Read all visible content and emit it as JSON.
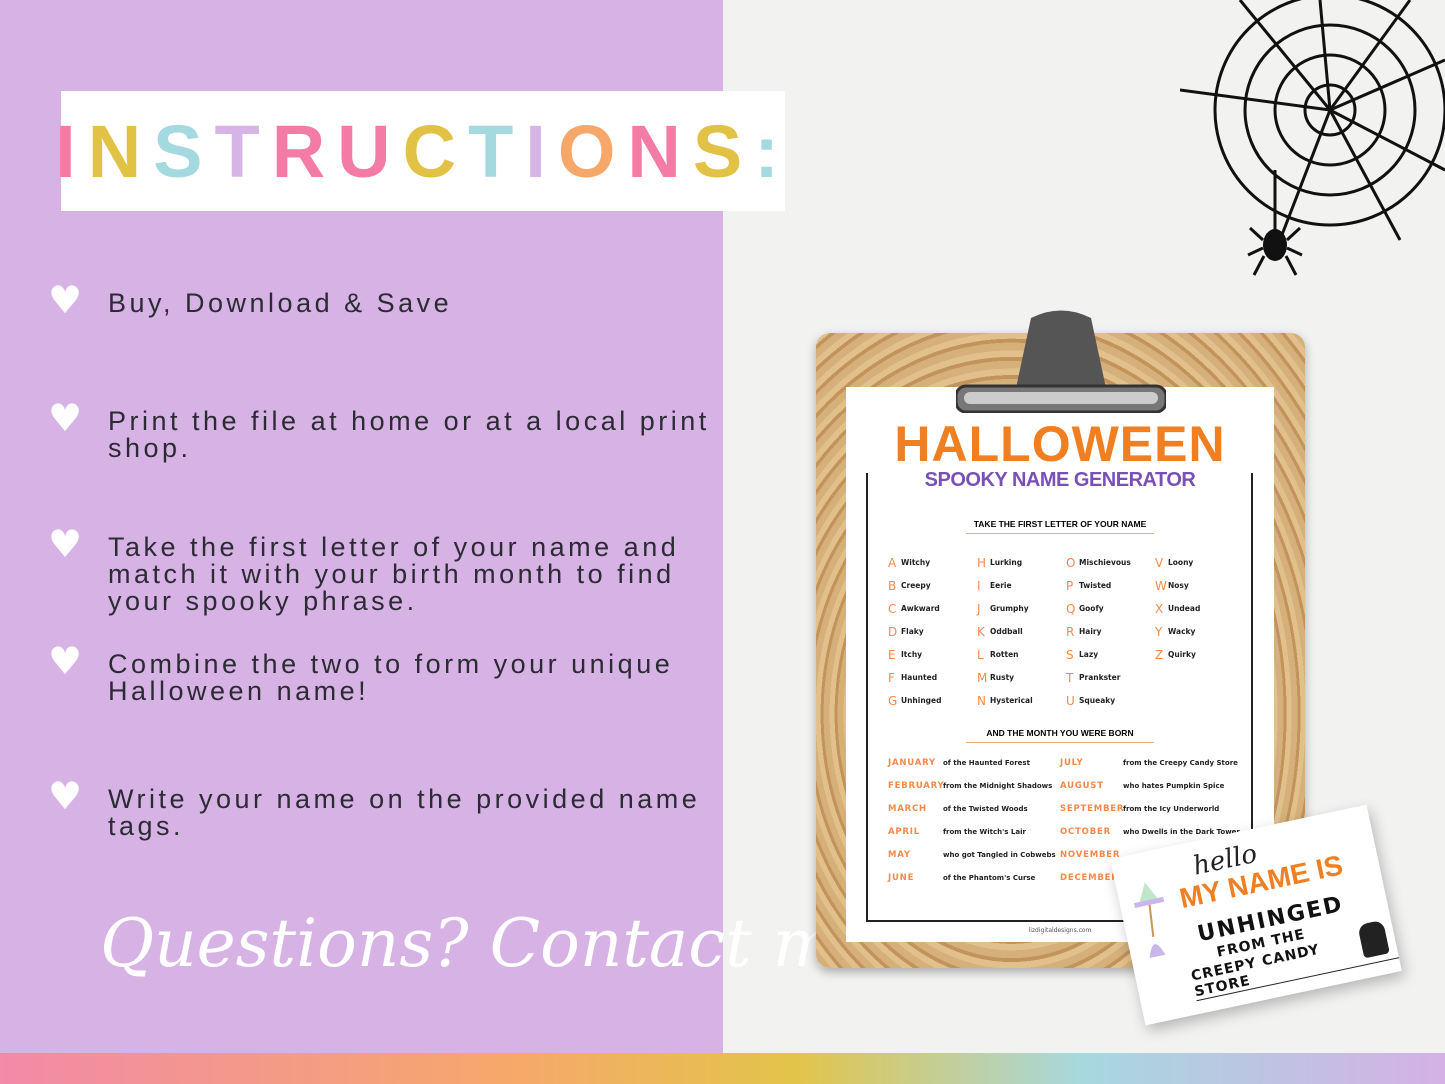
{
  "title": {
    "letters": [
      "I",
      "N",
      "S",
      "T",
      "R",
      "U",
      "C",
      "T",
      "I",
      "O",
      "N",
      "S",
      ":"
    ],
    "colors": [
      "#f37ba6",
      "#e2c244",
      "#a5d9e0",
      "#d6b4e6",
      "#f37ba6",
      "#f37ba6",
      "#e2c244",
      "#a5d9e0",
      "#d6b4e6",
      "#f6a86b",
      "#f37ba6",
      "#e2c244",
      "#a5d9e0"
    ]
  },
  "steps": [
    {
      "icon": "heart-icon",
      "text": "Buy, Download & Save"
    },
    {
      "icon": "heart-icon",
      "text": "Print the file at home or at a local print shop."
    },
    {
      "icon": "heart-icon",
      "text": "Take the first letter of your name and match it with your birth month to find your spooky phrase."
    },
    {
      "icon": "heart-icon",
      "text": "Combine the two to form your unique Halloween name!"
    },
    {
      "icon": "heart-icon",
      "text": "Write your name on the provided name tags."
    }
  ],
  "contact": "Questions? Contact me!",
  "sheet": {
    "title": "HALLOWEEN",
    "subtitle": "SPOOKY NAME GENERATOR",
    "letters_heading": "TAKE THE FIRST LETTER OF YOUR NAME",
    "letters": [
      [
        [
          "A",
          "Witchy"
        ],
        [
          "B",
          "Creepy"
        ],
        [
          "C",
          "Awkward"
        ],
        [
          "D",
          "Flaky"
        ],
        [
          "E",
          "Itchy"
        ],
        [
          "F",
          "Haunted"
        ],
        [
          "G",
          "Unhinged"
        ]
      ],
      [
        [
          "H",
          "Lurking"
        ],
        [
          "I",
          "Eerie"
        ],
        [
          "J",
          "Grumphy"
        ],
        [
          "K",
          "Oddball"
        ],
        [
          "L",
          "Rotten"
        ],
        [
          "M",
          "Rusty"
        ],
        [
          "N",
          "Hysterical"
        ]
      ],
      [
        [
          "O",
          "Mischievous"
        ],
        [
          "P",
          "Twisted"
        ],
        [
          "Q",
          "Goofy"
        ],
        [
          "R",
          "Hairy"
        ],
        [
          "S",
          "Lazy"
        ],
        [
          "T",
          "Prankster"
        ],
        [
          "U",
          "Squeaky"
        ]
      ],
      [
        [
          "V",
          "Loony"
        ],
        [
          "W",
          "Nosy"
        ],
        [
          "X",
          "Undead"
        ],
        [
          "Y",
          "Wacky"
        ],
        [
          "Z",
          "Quirky"
        ]
      ]
    ],
    "months_heading": "AND THE MONTH YOU WERE BORN",
    "months": [
      [
        "JANUARY",
        "of the Haunted Forest"
      ],
      [
        "FEBRUARY",
        "from the Midnight Shadows"
      ],
      [
        "MARCH",
        "of the Twisted Woods"
      ],
      [
        "APRIL",
        "from the Witch's Lair"
      ],
      [
        "MAY",
        "who got Tangled in Cobwebs"
      ],
      [
        "JUNE",
        "of the Phantom's Curse"
      ],
      [
        "JULY",
        "from the Creepy Candy Store"
      ],
      [
        "AUGUST",
        "who hates Pumpkin Spice"
      ],
      [
        "SEPTEMBER",
        "from the Icy Underworld"
      ],
      [
        "OCTOBER",
        "who Dwells in the Dark Tower"
      ],
      [
        "NOVEMBER",
        ""
      ],
      [
        "DECEMBER",
        ""
      ]
    ],
    "footer": "lizdigitaldesigns.com"
  },
  "name_tag": {
    "hello": "hello",
    "my_name_is": "MY NAME IS",
    "line1": "UNHINGED",
    "line2": "FROM THE",
    "line3": "CREEPY CANDY STORE"
  },
  "colors": {
    "left_bg": "#d7b3e5",
    "orange": "#f07f22",
    "purple": "#7a4fb6"
  }
}
